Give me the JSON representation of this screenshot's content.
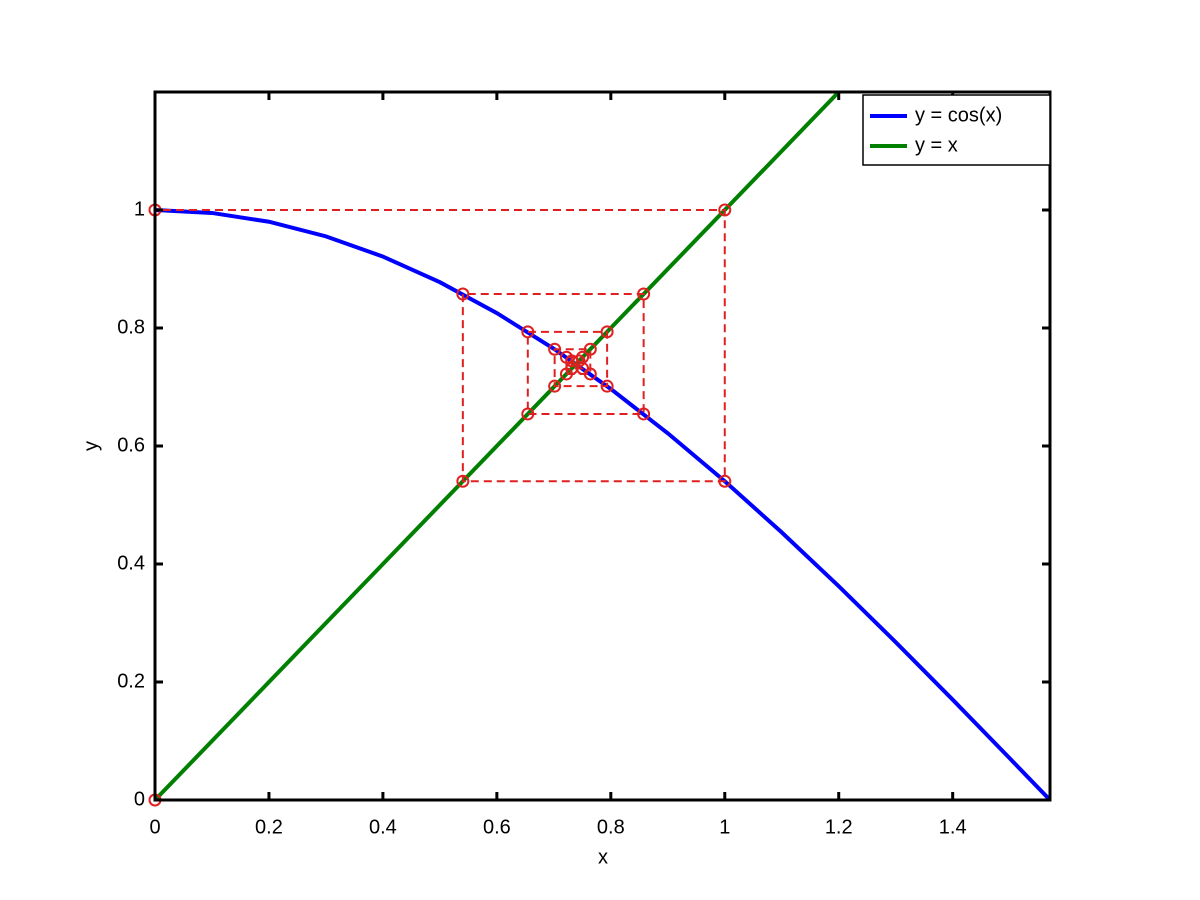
{
  "chart_data": {
    "type": "line",
    "xlabel": "x",
    "ylabel": "y",
    "xlim": [
      0,
      1.5708
    ],
    "ylim": [
      0,
      1.2
    ],
    "xticks": [
      0,
      0.2,
      0.4,
      0.6,
      0.8,
      1,
      1.2,
      1.4
    ],
    "yticks": [
      0,
      0.2,
      0.4,
      0.6,
      0.8,
      1
    ],
    "legend": "upper right",
    "series": [
      {
        "name": "y = cos(x)",
        "color": "#0000ff",
        "x": [
          0,
          0.1,
          0.2,
          0.3,
          0.4,
          0.5,
          0.6,
          0.7,
          0.8,
          0.9,
          1,
          1.1,
          1.2,
          1.3,
          1.4,
          1.5,
          1.5708
        ],
        "values": [
          1,
          0.995,
          0.9801,
          0.9553,
          0.9211,
          0.8776,
          0.8253,
          0.7648,
          0.6967,
          0.6216,
          0.5403,
          0.4536,
          0.3624,
          0.2675,
          0.17,
          0.0707,
          0
        ]
      },
      {
        "name": "y = x",
        "color": "#008000",
        "x": [
          0,
          1.2
        ],
        "values": [
          0,
          1.2
        ]
      },
      {
        "color": "#e02020",
        "style": "dashed",
        "marker": "circle",
        "x": [
          0,
          0,
          1,
          1,
          0.5403,
          0.5403,
          0.8576,
          0.8576,
          0.6543,
          0.6543,
          0.7935,
          0.7935,
          0.7014,
          0.7014,
          0.764,
          0.764,
          0.7221,
          0.7221,
          0.7504,
          0.7504,
          0.7314,
          0.7314,
          0.7442
        ],
        "values": [
          0,
          1,
          1,
          0.5403,
          0.5403,
          0.8576,
          0.8576,
          0.6543,
          0.6543,
          0.7935,
          0.7935,
          0.7014,
          0.7014,
          0.764,
          0.764,
          0.7221,
          0.7221,
          0.7504,
          0.7504,
          0.7314,
          0.7314,
          0.7442,
          0.7442
        ]
      }
    ]
  }
}
